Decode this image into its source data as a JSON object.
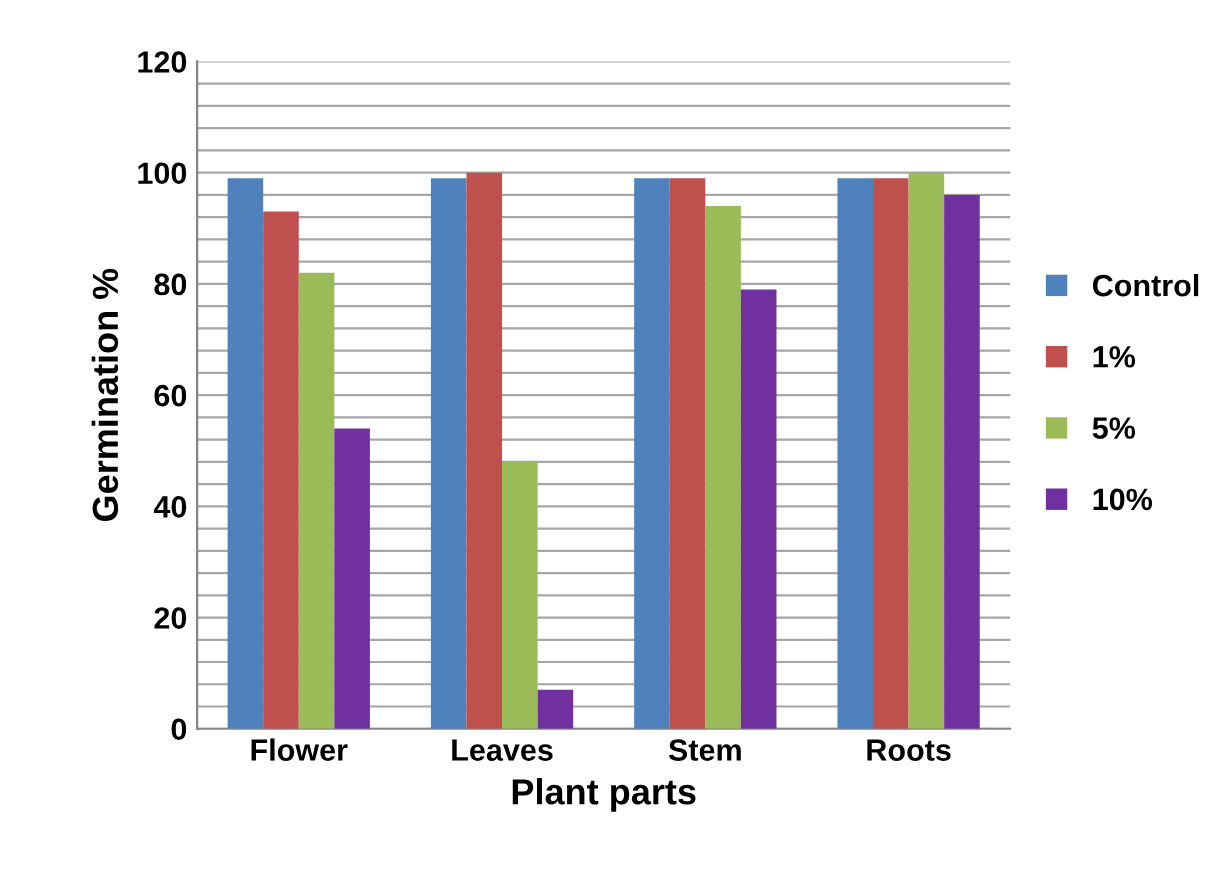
{
  "chart_data": {
    "type": "bar",
    "xlabel": "Plant parts",
    "ylabel": "Germination %",
    "categories": [
      "Flower",
      "Leaves",
      "Stem",
      "Roots"
    ],
    "series": [
      {
        "name": "Control",
        "color": "#4f81bd",
        "values": [
          99,
          99,
          99,
          99
        ]
      },
      {
        "name": "1%",
        "color": "#c0504d",
        "values": [
          93,
          100,
          99,
          99
        ]
      },
      {
        "name": "5%",
        "color": "#9bbb59",
        "values": [
          82,
          48,
          94,
          100
        ]
      },
      {
        "name": "10%",
        "color": "#7030a0",
        "values": [
          54,
          7,
          79,
          96
        ]
      }
    ],
    "ylim": [
      0,
      120
    ],
    "yticks": [
      0,
      {
        "value": 4,
        "label": null
      },
      {
        "value": 8,
        "label": null
      },
      {
        "value": 12,
        "label": null
      },
      {
        "value": 16,
        "label": null
      },
      20,
      {
        "value": 24,
        "label": null
      },
      {
        "value": 28,
        "label": null
      },
      {
        "value": 32,
        "label": null
      },
      {
        "value": 36,
        "label": null
      },
      40,
      {
        "value": 44,
        "label": null
      },
      {
        "value": 48,
        "label": null
      },
      {
        "value": 52,
        "label": null
      },
      {
        "value": 56,
        "label": null
      },
      60,
      {
        "value": 64,
        "label": null
      },
      {
        "value": 68,
        "label": null
      },
      {
        "value": 72,
        "label": null
      },
      {
        "value": 76,
        "label": null
      },
      80,
      {
        "value": 84,
        "label": null
      },
      {
        "value": 88,
        "label": null
      },
      {
        "value": 92,
        "label": null
      },
      {
        "value": 96,
        "label": null
      },
      100,
      {
        "value": 104,
        "label": null
      },
      {
        "value": 108,
        "label": null
      },
      {
        "value": 112,
        "label": null
      },
      {
        "value": 116,
        "label": null
      },
      120
    ],
    "grid": "y",
    "legend": "right"
  }
}
